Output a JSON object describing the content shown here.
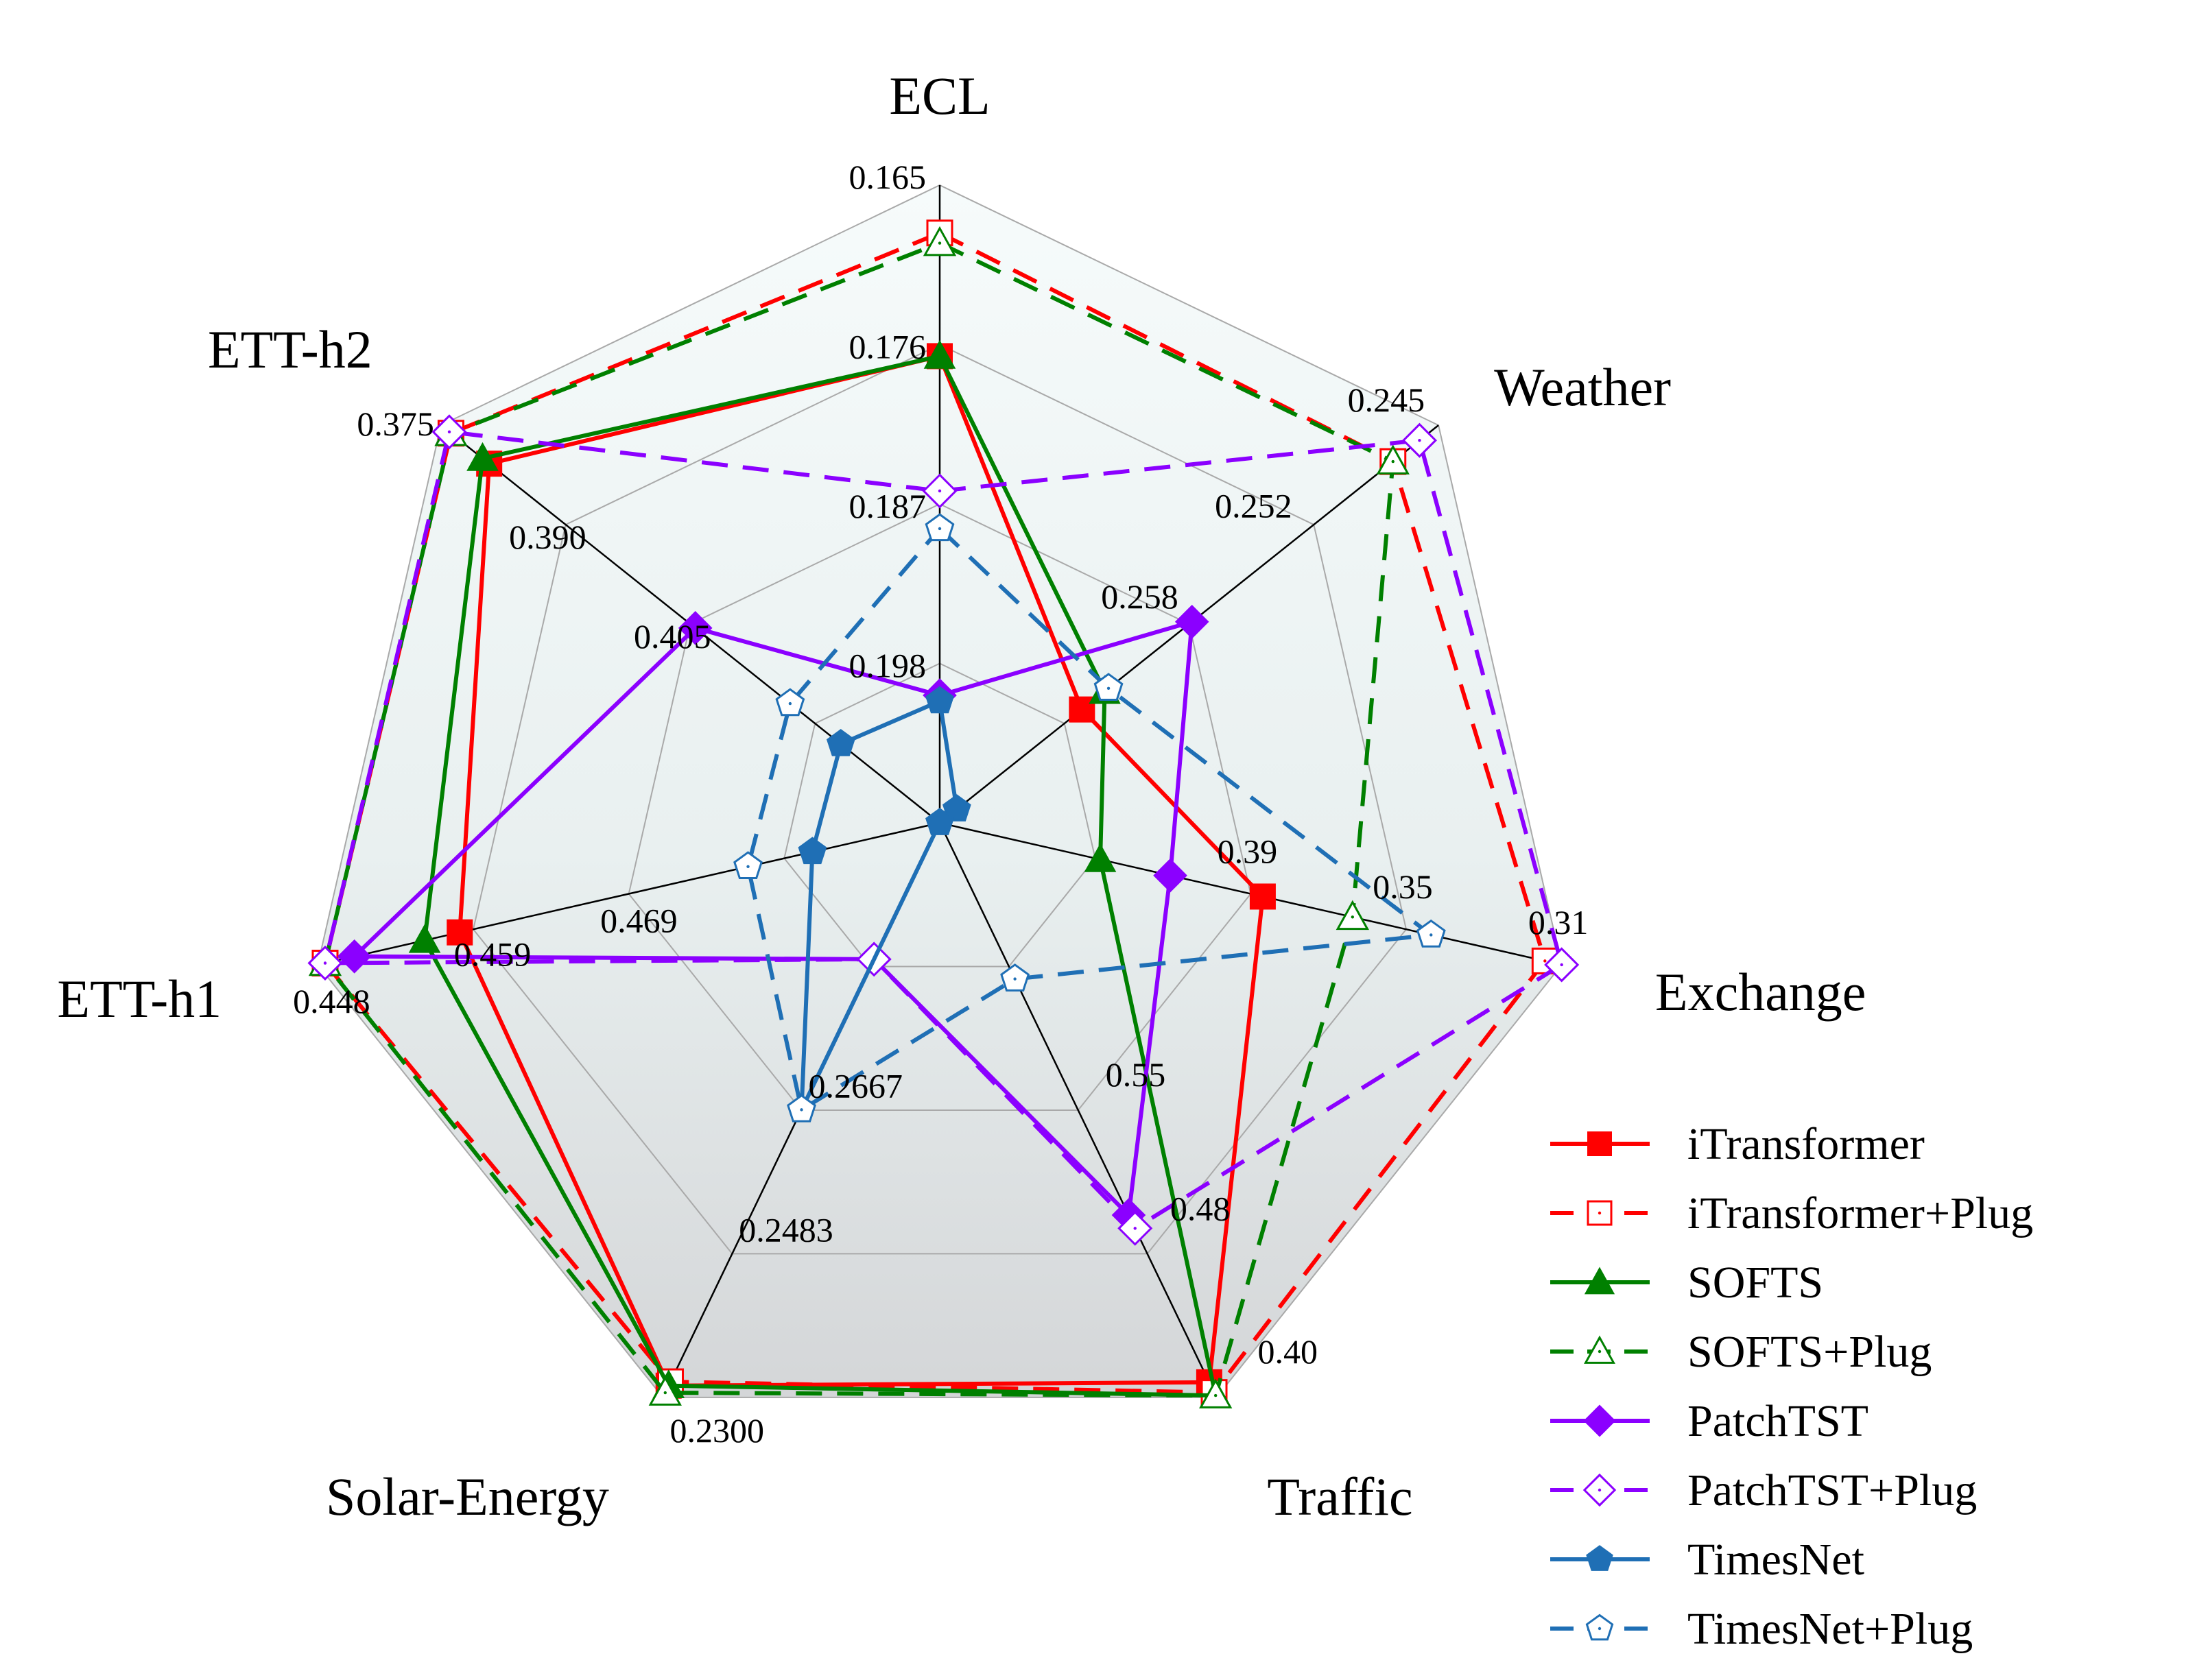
{
  "chart_data": {
    "type": "radar",
    "axes": [
      {
        "name": "ECL",
        "ticks": [
          "0.165",
          "0.176",
          "0.187",
          "0.198"
        ],
        "range": [
          0.209,
          0.165
        ]
      },
      {
        "name": "Weather",
        "ticks": [
          "0.245",
          "0.252",
          "0.258"
        ],
        "range": [
          0.2713,
          0.245
        ]
      },
      {
        "name": "Exchange",
        "ticks": [
          "0.31",
          "0.35",
          "0.39"
        ],
        "range": [
          0.47,
          0.31
        ]
      },
      {
        "name": "Traffic",
        "ticks": [
          "0.40",
          "0.48",
          "0.55"
        ],
        "range": [
          0.7,
          0.4
        ]
      },
      {
        "name": "Solar-Energy",
        "ticks": [
          "0.2300",
          "0.2483",
          "0.2667"
        ],
        "range": [
          0.3033,
          0.23
        ]
      },
      {
        "name": "ETT-h1",
        "ticks": [
          "0.448",
          "0.459",
          "0.469"
        ],
        "range": [
          0.4905,
          0.448
        ]
      },
      {
        "name": "ETT-h2",
        "ticks": [
          "0.375",
          "0.390",
          "0.405"
        ],
        "range": [
          0.435,
          0.375
        ]
      }
    ],
    "series": [
      {
        "name": "iTransformer",
        "color": "#ff0000",
        "dash": false,
        "marker": "square",
        "filled": true,
        "values": [
          0.1768,
          0.2638,
          0.3869,
          0.4079,
          0.2315,
          0.4577,
          0.3808
        ]
      },
      {
        "name": "iTransformer+Plug",
        "color": "#ff0000",
        "dash": true,
        "marker": "square",
        "filled": false,
        "values": [
          0.1683,
          0.2474,
          0.3143,
          0.4026,
          0.232,
          0.4485,
          0.3762
        ]
      },
      {
        "name": "SOFTS",
        "color": "#008000",
        "dash": false,
        "marker": "triangle",
        "filled": true,
        "values": [
          0.1768,
          0.2626,
          0.4287,
          0.401,
          0.2315,
          0.4553,
          0.38
        ]
      },
      {
        "name": "SOFTS+Plug",
        "color": "#008000",
        "dash": true,
        "marker": "triangle",
        "filled": false,
        "values": [
          0.169,
          0.2474,
          0.3638,
          0.401,
          0.2306,
          0.4485,
          0.3762
        ]
      },
      {
        "name": "PatchTST",
        "color": "#8b00ff",
        "dash": false,
        "marker": "diamond",
        "filled": true,
        "values": [
          0.2002,
          0.258,
          0.4107,
          0.4952,
          0.2859,
          0.4505,
          0.4056
        ]
      },
      {
        "name": "PatchTST+Plug",
        "color": "#8b00ff",
        "dash": true,
        "marker": "diamond",
        "filled": false,
        "values": [
          0.1861,
          0.246,
          0.31,
          0.4883,
          0.2859,
          0.4485,
          0.376
        ]
      },
      {
        "name": "TimesNet",
        "color": "#1f6fb5",
        "dash": false,
        "marker": "pentagon",
        "filled": true,
        "values": [
          0.2006,
          0.2704,
          0.47,
          0.7,
          0.2667,
          0.4818,
          0.4231
        ]
      },
      {
        "name": "TimesNet+Plug",
        "color": "#1f6fb5",
        "dash": true,
        "marker": "pentagon",
        "filled": false,
        "values": [
          0.1887,
          0.2624,
          0.3436,
          0.6185,
          0.2667,
          0.4774,
          0.417
        ]
      }
    ],
    "legend_position": "bottom-right",
    "grid": true
  }
}
